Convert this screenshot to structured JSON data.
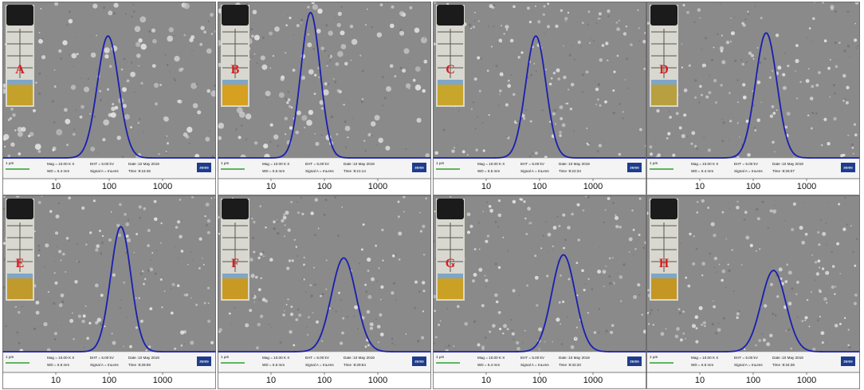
{
  "chart_data": {
    "type": "line",
    "x_scale": "log",
    "x_ticks": [
      "10",
      "100",
      "1000"
    ],
    "sem_info": {
      "scale_bar": "1 µm",
      "mag": "Mag =  10.00 K X",
      "eht": "EHT = 5.00 kV",
      "signal": "Signal A = InLens",
      "date": "Date :10 May 2019",
      "brand": "ZEISS"
    },
    "panels": [
      {
        "label": "A",
        "wd": "WD = 6.4 mm",
        "time": "Time :9:16:46",
        "peak_x": 95,
        "peak_y": 0.78,
        "sigma": 0.2,
        "liquid": "#c4a12a"
      },
      {
        "label": "B",
        "wd": "WD = 6.5 mm",
        "time": "Time :9:21:14",
        "peak_x": 55,
        "peak_y": 0.93,
        "sigma": 0.18,
        "liquid": "#d6a020"
      },
      {
        "label": "C",
        "wd": "WD = 6.5 mm",
        "time": "Time :9:22:34",
        "peak_x": 85,
        "peak_y": 0.78,
        "sigma": 0.19,
        "liquid": "#c8a62c"
      },
      {
        "label": "D",
        "wd": "WD = 6.4 mm",
        "time": "Time :9:26:07",
        "peak_x": 175,
        "peak_y": 0.8,
        "sigma": 0.2,
        "liquid": "#b8a040"
      },
      {
        "label": "E",
        "wd": "WD = 6.6 mm",
        "time": "Time :9:28:08",
        "peak_x": 165,
        "peak_y": 0.8,
        "sigma": 0.19,
        "liquid": "#c19a2e"
      },
      {
        "label": "F",
        "wd": "WD = 6.6 mm",
        "time": "Time :9:29:54",
        "peak_x": 230,
        "peak_y": 0.6,
        "sigma": 0.23,
        "liquid": "#c89a24"
      },
      {
        "label": "G",
        "wd": "WD = 6.4 mm",
        "time": "Time :9:32:20",
        "peak_x": 280,
        "peak_y": 0.62,
        "sigma": 0.22,
        "liquid": "#caa025"
      },
      {
        "label": "H",
        "wd": "WD = 6.5 mm",
        "time": "Time :9:34:38",
        "peak_x": 240,
        "peak_y": 0.52,
        "sigma": 0.23,
        "liquid": "#c49624"
      }
    ]
  }
}
